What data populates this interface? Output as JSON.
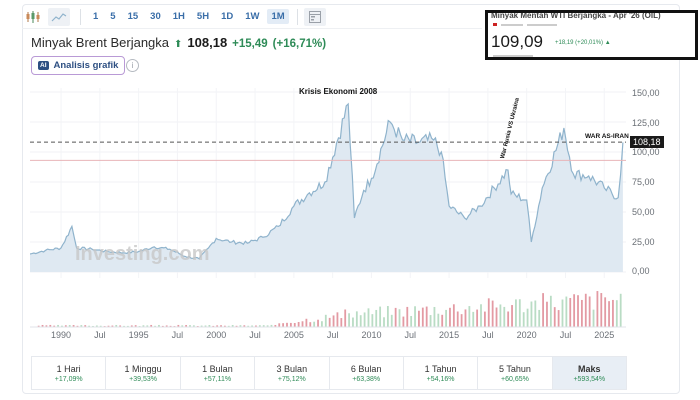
{
  "toolbar": {
    "chart_types": [
      {
        "name": "candlestick-chart-icon"
      },
      {
        "name": "area-chart-icon",
        "selected": true
      }
    ],
    "intervals": [
      "1",
      "5",
      "15",
      "30",
      "1H",
      "5H",
      "1D",
      "1W",
      "1M"
    ],
    "active_interval": "1M",
    "layout_icon": "layout-icon"
  },
  "instrument": {
    "name": "Minyak Brent Berjangka",
    "price": "108,18",
    "change": "+15,49",
    "change_pct": "(+16,71%)",
    "direction": "up"
  },
  "ai_button": {
    "badge": "AI",
    "label": "Analisis grafik"
  },
  "info_icon": "i",
  "wti_box": {
    "title": "Minyak Mentah WTI Berjangka - Apr '26 (OIL)",
    "price": "109,09",
    "change": "+18,19 (+20,01%) ▲"
  },
  "watermark": "Investing.com",
  "colors": {
    "up": "#2e8b57",
    "line": "#8fb3cc",
    "fill": "#dfe9f2",
    "volume_up": "#b9dcc4",
    "volume_down": "#e39aa3",
    "accent": "#3a6ea8"
  },
  "chart_data": {
    "type": "area",
    "title": "Minyak Brent Berjangka",
    "xlabel": "",
    "ylabel": "",
    "ylim": [
      0,
      150
    ],
    "y_ticks": [
      "150,00",
      "125,00",
      "100,00",
      "75,00",
      "50,00",
      "25,00",
      "0,00"
    ],
    "x_ticks": [
      "1990",
      "Jul",
      "1995",
      "Jul",
      "2000",
      "Jul",
      "2005",
      "Jul",
      "2010",
      "Jul",
      "2015",
      "Jul",
      "2020",
      "Jul",
      "2025"
    ],
    "current_price_label": "108,18",
    "reference_lines": [
      {
        "value": 108.18,
        "style": "dashed",
        "color": "#555555"
      },
      {
        "value": 93,
        "style": "solid",
        "color": "#e8b4b8"
      }
    ],
    "annotations": [
      {
        "text": "Krisis Ekonomi 2008",
        "x": 2008
      },
      {
        "text": "War Rusia VS Ukraina",
        "x": 2022,
        "rotated": true
      },
      {
        "text": "WAR AS-IRAN",
        "x": 2026
      }
    ],
    "series": [
      {
        "name": "Brent",
        "x": [
          1988,
          1989,
          1990,
          1990.7,
          1991,
          1992,
          1993,
          1994,
          1995,
          1996,
          1997,
          1998,
          1998.9,
          1999.5,
          2000,
          2001,
          2002,
          2003,
          2004,
          2005,
          2006,
          2007,
          2008.5,
          2008.9,
          2009.5,
          2010,
          2011.2,
          2012,
          2013,
          2014,
          2014.5,
          2015,
          2016,
          2017,
          2018.8,
          2019,
          2020,
          2020.3,
          2021,
          2022.4,
          2023,
          2024,
          2025,
          2025.9,
          2026.2
        ],
        "values": [
          15,
          18,
          20,
          38,
          20,
          19,
          17,
          16,
          17,
          21,
          19,
          13,
          11,
          20,
          28,
          25,
          24,
          29,
          38,
          55,
          66,
          75,
          140,
          45,
          68,
          78,
          125,
          110,
          108,
          110,
          100,
          55,
          45,
          55,
          85,
          65,
          60,
          25,
          70,
          120,
          82,
          80,
          70,
          62,
          108
        ]
      }
    ],
    "performance": [
      {
        "label": "1 Hari",
        "value": "+17,09%"
      },
      {
        "label": "1 Minggu",
        "value": "+39,53%"
      },
      {
        "label": "1 Bulan",
        "value": "+57,11%"
      },
      {
        "label": "3 Bulan",
        "value": "+75,12%"
      },
      {
        "label": "6 Bulan",
        "value": "+63,38%"
      },
      {
        "label": "1 Tahun",
        "value": "+54,16%"
      },
      {
        "label": "5 Tahun",
        "value": "+60,65%"
      },
      {
        "label": "Maks",
        "value": "+593,54%",
        "active": true
      }
    ]
  }
}
